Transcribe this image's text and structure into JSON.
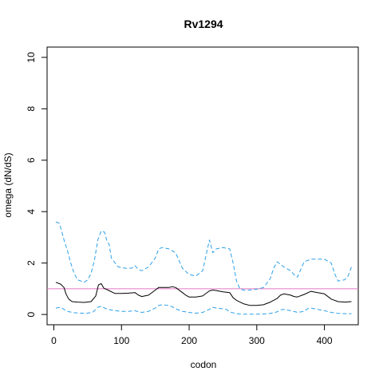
{
  "chart_data": {
    "type": "line",
    "title": "Rv1294",
    "xlabel": "codon",
    "ylabel": "omega (dN/dS)",
    "xlim": [
      -10,
      450
    ],
    "ylim": [
      -0.4,
      10.4
    ],
    "xticks": [
      0,
      100,
      200,
      300,
      400
    ],
    "yticks": [
      0,
      2,
      4,
      6,
      8,
      10
    ],
    "reference_line": {
      "y": 1,
      "color": "#e377c2"
    },
    "series": [
      {
        "role": "estimate",
        "style": "solid",
        "color": "#000000",
        "x": [
          3,
          10,
          15,
          18,
          22,
          27,
          35,
          45,
          55,
          62,
          66,
          70,
          74,
          80,
          90,
          100,
          110,
          120,
          125,
          130,
          140,
          150,
          155,
          160,
          170,
          175,
          180,
          190,
          195,
          200,
          210,
          220,
          230,
          235,
          240,
          250,
          260,
          265,
          270,
          280,
          290,
          300,
          310,
          320,
          330,
          335,
          340,
          350,
          355,
          360,
          370,
          380,
          390,
          400,
          410,
          420,
          430,
          440
        ],
        "y": [
          1.25,
          1.18,
          1.05,
          0.8,
          0.6,
          0.5,
          0.48,
          0.47,
          0.5,
          0.72,
          1.15,
          1.2,
          1.02,
          0.95,
          0.82,
          0.82,
          0.83,
          0.85,
          0.75,
          0.7,
          0.75,
          0.95,
          1.05,
          1.05,
          1.05,
          1.08,
          1.05,
          0.85,
          0.75,
          0.68,
          0.68,
          0.72,
          0.92,
          0.95,
          0.93,
          0.88,
          0.85,
          0.65,
          0.55,
          0.42,
          0.35,
          0.35,
          0.38,
          0.48,
          0.62,
          0.75,
          0.8,
          0.75,
          0.7,
          0.68,
          0.78,
          0.9,
          0.85,
          0.8,
          0.6,
          0.5,
          0.48,
          0.5
        ]
      },
      {
        "role": "upper bound",
        "style": "dashed",
        "color": "#2ca0e8",
        "x": [
          3,
          8,
          12,
          15,
          20,
          25,
          30,
          35,
          40,
          45,
          50,
          55,
          60,
          65,
          70,
          75,
          78,
          82,
          85,
          95,
          105,
          115,
          120,
          125,
          130,
          140,
          150,
          155,
          160,
          170,
          180,
          185,
          190,
          200,
          210,
          220,
          225,
          230,
          235,
          240,
          250,
          260,
          265,
          270,
          275,
          280,
          290,
          300,
          310,
          320,
          325,
          330,
          335,
          340,
          350,
          355,
          360,
          365,
          370,
          380,
          390,
          400,
          410,
          415,
          420,
          430,
          435,
          440
        ],
        "y": [
          3.6,
          3.55,
          3.2,
          2.9,
          2.5,
          2.0,
          1.6,
          1.35,
          1.3,
          1.25,
          1.35,
          1.6,
          2.1,
          2.9,
          3.25,
          3.2,
          2.9,
          2.7,
          2.2,
          1.85,
          1.8,
          1.8,
          1.9,
          1.75,
          1.7,
          1.85,
          2.2,
          2.55,
          2.6,
          2.55,
          2.4,
          2.1,
          1.8,
          1.55,
          1.5,
          1.7,
          2.3,
          2.9,
          2.4,
          2.55,
          2.6,
          2.55,
          2.0,
          1.3,
          1.0,
          0.95,
          0.95,
          0.98,
          1.05,
          1.4,
          1.8,
          2.05,
          1.95,
          1.85,
          1.7,
          1.55,
          1.45,
          1.75,
          2.05,
          2.15,
          2.15,
          2.15,
          2.0,
          1.6,
          1.3,
          1.35,
          1.5,
          1.85
        ]
      },
      {
        "role": "lower bound",
        "style": "dashed",
        "color": "#2ca0e8",
        "x": [
          3,
          10,
          15,
          20,
          30,
          40,
          50,
          58,
          65,
          70,
          75,
          80,
          90,
          100,
          110,
          120,
          125,
          130,
          140,
          150,
          155,
          160,
          170,
          175,
          180,
          190,
          200,
          210,
          220,
          230,
          235,
          240,
          250,
          255,
          260,
          270,
          280,
          290,
          300,
          310,
          320,
          330,
          335,
          340,
          350,
          360,
          370,
          375,
          380,
          390,
          400,
          410,
          420,
          430,
          440
        ],
        "y": [
          0.25,
          0.28,
          0.2,
          0.12,
          0.07,
          0.05,
          0.05,
          0.1,
          0.28,
          0.32,
          0.25,
          0.2,
          0.15,
          0.12,
          0.12,
          0.15,
          0.1,
          0.08,
          0.12,
          0.25,
          0.35,
          0.38,
          0.35,
          0.3,
          0.22,
          0.12,
          0.08,
          0.05,
          0.08,
          0.2,
          0.28,
          0.25,
          0.22,
          0.2,
          0.1,
          0.03,
          0.01,
          0.01,
          0.01,
          0.02,
          0.04,
          0.1,
          0.18,
          0.2,
          0.15,
          0.08,
          0.12,
          0.22,
          0.25,
          0.2,
          0.15,
          0.08,
          0.04,
          0.03,
          0.03
        ]
      }
    ]
  }
}
